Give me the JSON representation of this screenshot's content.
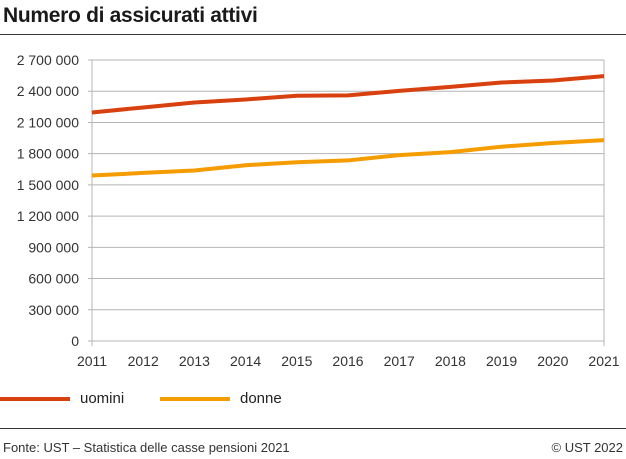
{
  "title": "Numero di assicurati attivi",
  "footer": {
    "source": "Fonte: UST – Statistica delle casse pensioni 2021",
    "copyright": "© UST 2022"
  },
  "chart_data": {
    "type": "line",
    "title": "Numero di assicurati attivi",
    "x": [
      2011,
      2012,
      2013,
      2014,
      2015,
      2016,
      2017,
      2018,
      2019,
      2020,
      2021
    ],
    "x_tick_labels": [
      "2011",
      "2012",
      "2013",
      "2014",
      "2015",
      "2016",
      "2017",
      "2018",
      "2019",
      "2020",
      "2021"
    ],
    "ylim": [
      0,
      2700000
    ],
    "y_ticks": [
      0,
      300000,
      600000,
      900000,
      1200000,
      1500000,
      1800000,
      2100000,
      2400000,
      2700000
    ],
    "y_tick_labels": [
      "0",
      "300 000",
      "600 000",
      "900 000",
      "1 200 000",
      "1 500 000",
      "1 800 000",
      "2 100 000",
      "2 400 000",
      "2 700 000"
    ],
    "grid": true,
    "legend_placement": "bottom",
    "series": [
      {
        "name": "uomini",
        "color": "#d9400f",
        "values": [
          2196000,
          2244000,
          2292000,
          2321000,
          2356000,
          2360000,
          2403000,
          2442000,
          2484000,
          2503000,
          2545000
        ]
      },
      {
        "name": "donne",
        "color": "#f59c00",
        "values": [
          1590000,
          1615000,
          1638000,
          1689000,
          1718000,
          1735000,
          1786000,
          1815000,
          1867000,
          1902000,
          1930000
        ]
      }
    ]
  }
}
